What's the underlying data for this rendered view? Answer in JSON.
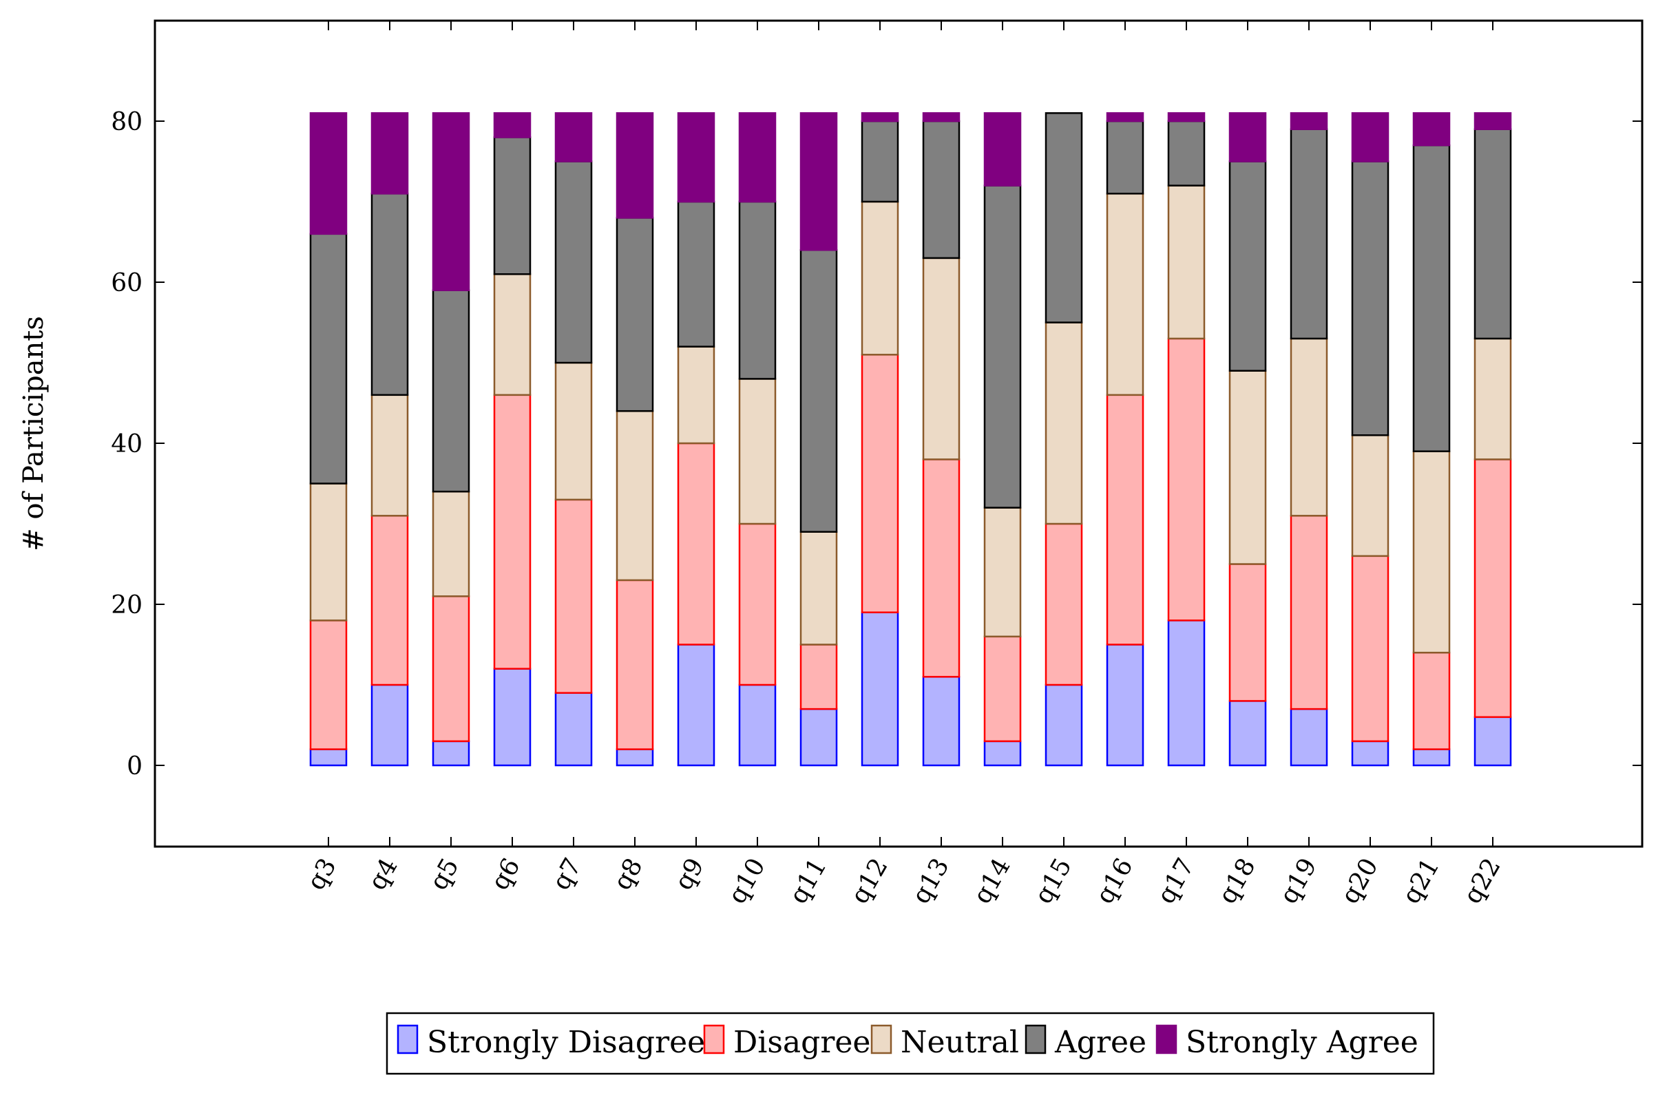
{
  "chart_data": {
    "type": "bar",
    "stacked": true,
    "title": "",
    "xlabel": "",
    "ylabel": "# of Participants",
    "ylim": [
      -10,
      92
    ],
    "yticks": [
      0,
      20,
      40,
      60,
      80
    ],
    "grid": false,
    "legend_position": "bottom-center",
    "categories": [
      "q3",
      "q4",
      "q5",
      "q6",
      "q7",
      "q8",
      "q9",
      "q10",
      "q11",
      "q12",
      "q13",
      "q14",
      "q15",
      "q16",
      "q17",
      "q18",
      "q19",
      "q20",
      "q21",
      "q22"
    ],
    "series": [
      {
        "name": "Strongly Disagree",
        "fill": "#b3b3ff",
        "stroke": "#0000ff",
        "values": [
          2,
          10,
          3,
          12,
          9,
          2,
          15,
          10,
          7,
          19,
          11,
          3,
          10,
          15,
          18,
          8,
          7,
          3,
          2,
          6
        ]
      },
      {
        "name": "Disagree",
        "fill": "#ffb3b3",
        "stroke": "#ff0000",
        "values": [
          16,
          21,
          18,
          34,
          24,
          21,
          25,
          20,
          8,
          32,
          27,
          13,
          20,
          31,
          35,
          17,
          24,
          23,
          12,
          32
        ]
      },
      {
        "name": "Neutral",
        "fill": "#ecdac6",
        "stroke": "#8b5a2b",
        "values": [
          17,
          15,
          13,
          15,
          17,
          21,
          12,
          18,
          14,
          19,
          25,
          16,
          25,
          25,
          19,
          24,
          22,
          15,
          25,
          15
        ]
      },
      {
        "name": "Agree",
        "fill": "#808080",
        "stroke": "#000000",
        "values": [
          31,
          25,
          25,
          17,
          25,
          24,
          18,
          22,
          35,
          10,
          17,
          40,
          26,
          9,
          8,
          26,
          26,
          34,
          38,
          26
        ]
      },
      {
        "name": "Strongly Agree",
        "fill": "#800080",
        "stroke": "#800080",
        "values": [
          15,
          10,
          22,
          3,
          6,
          13,
          11,
          11,
          17,
          1,
          1,
          9,
          0,
          1,
          1,
          6,
          2,
          6,
          4,
          2
        ]
      }
    ]
  }
}
